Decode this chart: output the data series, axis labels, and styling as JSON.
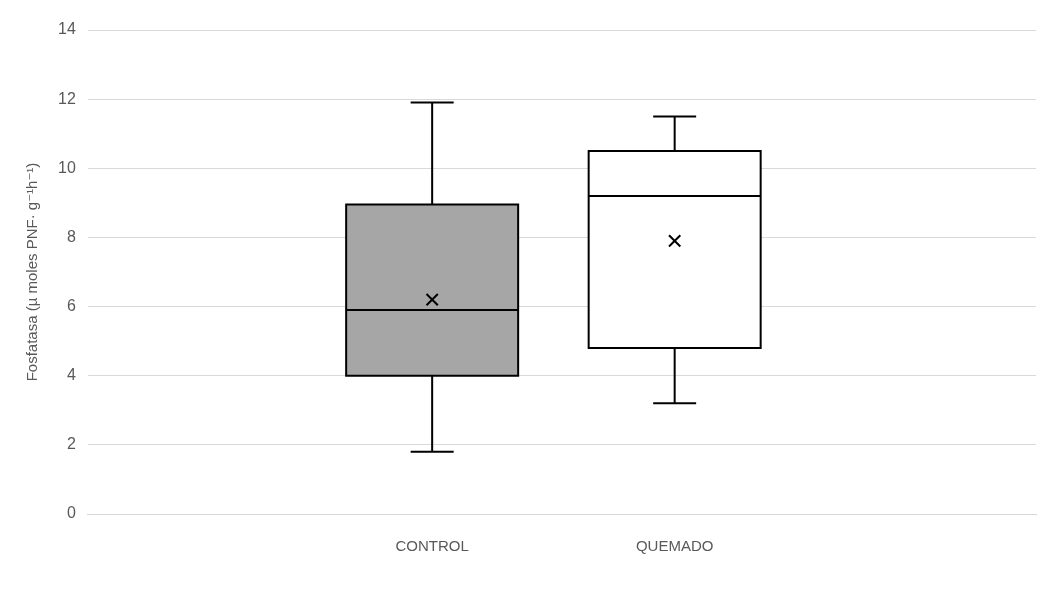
{
  "chart_data": {
    "type": "box",
    "ylabel": "Fosfatasa (µ moles PNF· g⁻¹h⁻¹)",
    "categories": [
      "CONTROL",
      "QUEMADO"
    ],
    "colors": [
      "#a6a6a6",
      "#ffffff"
    ],
    "boxes": [
      {
        "low": 1.8,
        "q1": 4.0,
        "median": 5.9,
        "q3": 8.95,
        "high": 11.9,
        "mean": 6.2
      },
      {
        "low": 3.2,
        "q1": 4.8,
        "median": 9.2,
        "q3": 10.5,
        "high": 11.5,
        "mean": 7.9
      }
    ],
    "ylim": [
      0,
      14
    ],
    "yticks": [
      0,
      2,
      4,
      6,
      8,
      10,
      12,
      14
    ],
    "grid": "y",
    "legend": false,
    "marker": "cross"
  }
}
